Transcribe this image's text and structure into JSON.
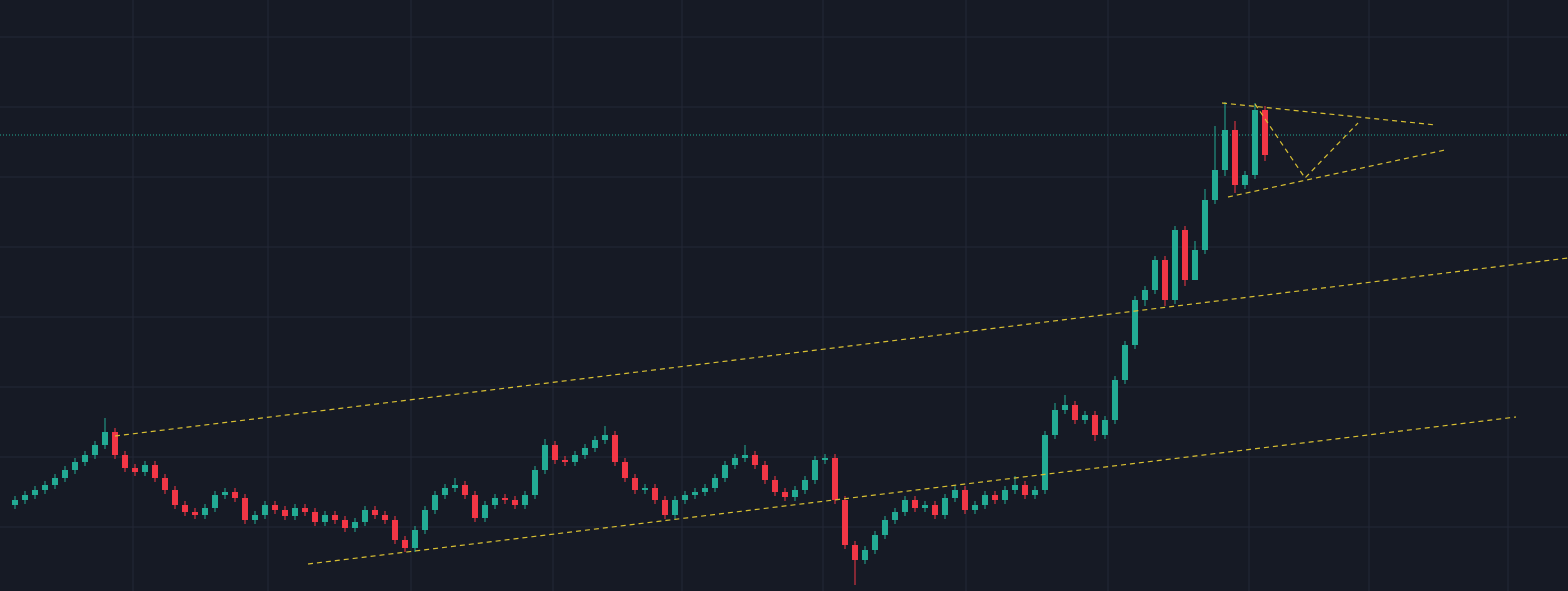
{
  "chart_data": {
    "type": "candlestick",
    "open": [
      86,
      91,
      96,
      101,
      106,
      113,
      121,
      129,
      136,
      146,
      159,
      136,
      123,
      119,
      126,
      113,
      101,
      86,
      79,
      76,
      83,
      96,
      99,
      93,
      71,
      76,
      86,
      81,
      75,
      83,
      79,
      69,
      76,
      71,
      63,
      69,
      81,
      76,
      71,
      51,
      43,
      61,
      81,
      96,
      103,
      106,
      96,
      73,
      86,
      93,
      91,
      86,
      96,
      121,
      146,
      131,
      129,
      136,
      143,
      151,
      156,
      129,
      113,
      101,
      103,
      91,
      76,
      91,
      96,
      99,
      103,
      113,
      126,
      133,
      136,
      126,
      111,
      99,
      94,
      101,
      111,
      131,
      133,
      91,
      46,
      31,
      41,
      56,
      71,
      79,
      91,
      83,
      86,
      76,
      93,
      101,
      81,
      86,
      96,
      91,
      101,
      106,
      96,
      101,
      156,
      181,
      186,
      171,
      176,
      156,
      171,
      211,
      246,
      291,
      301,
      331,
      291,
      361,
      311,
      341,
      391,
      421,
      461,
      406,
      416,
      481
    ],
    "high": [
      95,
      100,
      105,
      110,
      117,
      125,
      133,
      140,
      150,
      173,
      163,
      140,
      127,
      130,
      130,
      117,
      105,
      90,
      83,
      87,
      100,
      103,
      103,
      97,
      80,
      90,
      90,
      85,
      87,
      87,
      83,
      80,
      80,
      75,
      73,
      85,
      85,
      80,
      75,
      55,
      65,
      85,
      100,
      107,
      113,
      110,
      100,
      90,
      97,
      97,
      95,
      100,
      125,
      152,
      150,
      135,
      140,
      147,
      155,
      165,
      160,
      133,
      117,
      107,
      107,
      95,
      95,
      100,
      103,
      107,
      117,
      130,
      137,
      146,
      140,
      130,
      115,
      103,
      105,
      115,
      135,
      137,
      137,
      95,
      50,
      45,
      60,
      75,
      83,
      95,
      95,
      90,
      90,
      97,
      105,
      105,
      90,
      100,
      100,
      105,
      115,
      110,
      105,
      160,
      188,
      196,
      190,
      180,
      180,
      175,
      215,
      250,
      295,
      305,
      335,
      335,
      365,
      365,
      350,
      402,
      465,
      489,
      470,
      420,
      488,
      485
    ],
    "low": [
      82,
      87,
      92,
      97,
      102,
      109,
      117,
      125,
      132,
      142,
      132,
      119,
      115,
      115,
      109,
      97,
      82,
      75,
      72,
      72,
      79,
      92,
      89,
      67,
      67,
      72,
      77,
      71,
      71,
      75,
      65,
      65,
      67,
      59,
      59,
      65,
      72,
      67,
      47,
      39,
      39,
      57,
      77,
      92,
      99,
      92,
      69,
      69,
      82,
      87,
      82,
      82,
      92,
      117,
      127,
      125,
      125,
      132,
      139,
      147,
      125,
      109,
      97,
      97,
      87,
      72,
      72,
      87,
      92,
      95,
      99,
      109,
      122,
      129,
      122,
      107,
      95,
      90,
      90,
      97,
      107,
      127,
      87,
      42,
      6,
      27,
      37,
      52,
      67,
      75,
      79,
      79,
      72,
      72,
      89,
      77,
      77,
      82,
      87,
      87,
      97,
      92,
      92,
      97,
      152,
      177,
      167,
      167,
      150,
      152,
      167,
      207,
      242,
      285,
      297,
      285,
      287,
      305,
      315,
      337,
      387,
      415,
      398,
      402,
      412,
      430
    ],
    "close": [
      91,
      96,
      101,
      106,
      113,
      121,
      129,
      136,
      146,
      159,
      136,
      123,
      119,
      126,
      113,
      101,
      86,
      79,
      76,
      83,
      96,
      99,
      93,
      71,
      76,
      86,
      81,
      75,
      83,
      79,
      69,
      76,
      71,
      63,
      69,
      81,
      76,
      71,
      51,
      43,
      61,
      81,
      96,
      103,
      106,
      96,
      73,
      86,
      93,
      91,
      86,
      96,
      121,
      146,
      131,
      129,
      136,
      143,
      151,
      156,
      129,
      113,
      101,
      103,
      91,
      76,
      91,
      96,
      99,
      103,
      113,
      126,
      133,
      136,
      126,
      111,
      99,
      94,
      101,
      111,
      131,
      133,
      91,
      46,
      31,
      41,
      56,
      71,
      79,
      91,
      83,
      86,
      76,
      93,
      101,
      81,
      86,
      96,
      91,
      101,
      106,
      96,
      101,
      156,
      181,
      186,
      171,
      176,
      156,
      171,
      211,
      246,
      291,
      301,
      331,
      291,
      361,
      311,
      341,
      391,
      421,
      461,
      406,
      416,
      481,
      436
    ],
    "ylim": [
      0,
      591
    ],
    "up_color": "#22ab94",
    "down_color": "#f23645"
  }
}
